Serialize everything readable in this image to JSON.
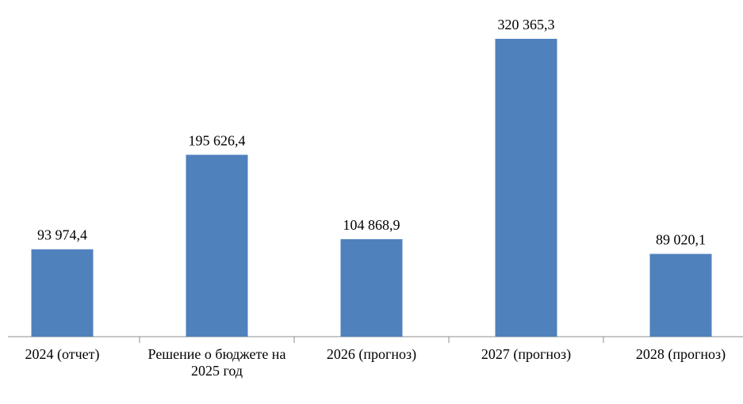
{
  "chart_data": {
    "type": "bar",
    "categories": [
      "2024 (отчет)",
      "Решение о бюджете на 2025 год",
      "2026 (прогноз)",
      "2027 (прогноз)",
      "2028 (прогноз)"
    ],
    "values": [
      93974.4,
      195626.4,
      104868.9,
      320365.3,
      89020.1
    ],
    "value_labels": [
      "93 974,4",
      "195 626,4",
      "104 868,9",
      "320 365,3",
      "89 020,1"
    ],
    "color": "#4f81bd"
  }
}
